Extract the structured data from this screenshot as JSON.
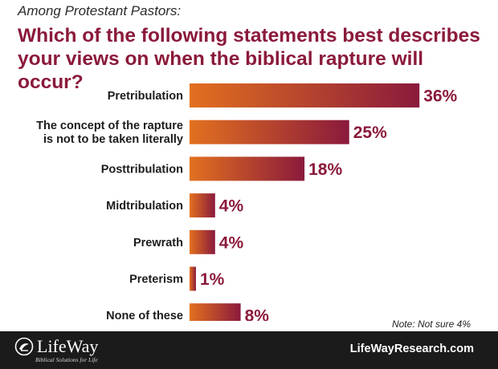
{
  "header": {
    "subtitle": "Among Protestant Pastors:",
    "title": "Which of the following statements best describes your views on when the biblical rapture will occur?"
  },
  "chart_data": {
    "type": "bar",
    "orientation": "horizontal",
    "categories": [
      [
        "Pretribulation"
      ],
      [
        "The concept of the rapture",
        "is not to be taken literally"
      ],
      [
        "Posttribulation"
      ],
      [
        "Midtribulation"
      ],
      [
        "Prewrath"
      ],
      [
        "Preterism"
      ],
      [
        "None of these"
      ]
    ],
    "values": [
      36,
      25,
      18,
      4,
      4,
      1,
      8
    ],
    "value_labels": [
      "36%",
      "25%",
      "18%",
      "4%",
      "4%",
      "1%",
      "8%"
    ],
    "unit": "%",
    "colors": {
      "bar_start": "#e2701f",
      "bar_end": "#8a1a3c",
      "value_text": "#8b1a3a"
    }
  },
  "note": "Note: Not sure 4%",
  "footer": {
    "logo_text": "LifeWay",
    "logo_tagline": "Biblical Solutions for Life",
    "website": "LifeWayResearch.com"
  }
}
